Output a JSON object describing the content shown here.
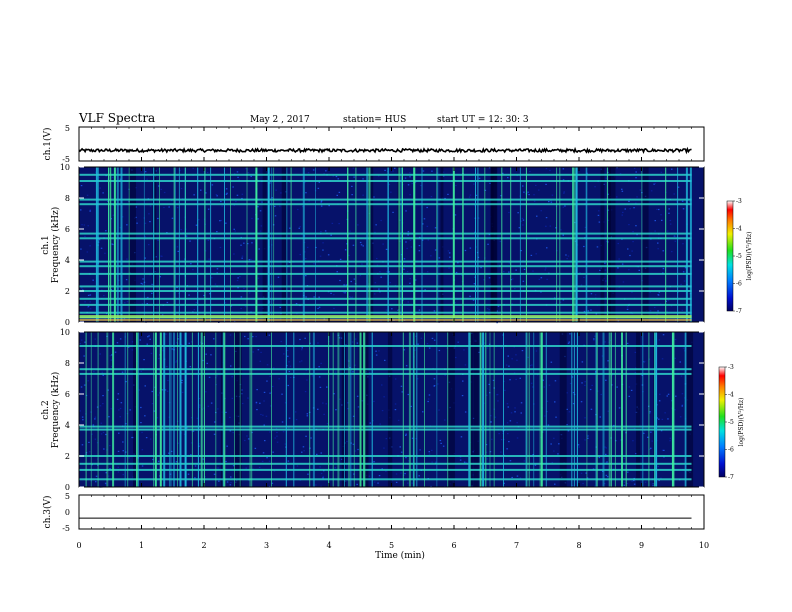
{
  "header": {
    "title": "VLF Spectra",
    "date": "May 2 , 2017",
    "station": "station= HUS",
    "start": "start UT =   12: 30: 3"
  },
  "chart_data": [
    {
      "type": "line",
      "ylabel": "ch.1(V)",
      "ylim": [
        -5,
        5
      ],
      "yticks": [
        "5",
        "-5"
      ],
      "description_of_trace": "noisy waveform near constant level",
      "x": [
        0,
        1,
        2,
        3,
        4,
        5,
        6,
        7,
        8,
        9,
        9.8
      ],
      "y": [
        -1.9,
        -1.9,
        -1.9,
        -1.9,
        -1.9,
        -1.9,
        -1.9,
        -1.9,
        -1.9,
        -1.9,
        -1.9
      ]
    },
    {
      "type": "heatmap",
      "ylabel_line1": "ch.1",
      "ylabel_line2": "Frequency  (kHz)",
      "ylim": [
        0,
        10
      ],
      "yticks": [
        "0",
        "2",
        "4",
        "6",
        "8",
        "10"
      ],
      "colorbar": {
        "label": "log(PSD)(V²/Hz)",
        "ticks": [
          "-3",
          "-4",
          "-5",
          "-6",
          "-7"
        ],
        "range": [
          -7,
          -3
        ]
      },
      "bright_bands_khz": [
        0.3,
        0.6,
        1.1,
        1.5,
        2.0,
        2.3,
        3.1,
        3.6,
        3.9,
        5.4,
        5.7,
        7.6,
        7.9,
        9.1,
        9.5
      ]
    },
    {
      "type": "heatmap",
      "ylabel_line1": "ch.2",
      "ylabel_line2": "Frequency  (kHz)",
      "ylim": [
        0,
        10
      ],
      "yticks": [
        "0",
        "2",
        "4",
        "6",
        "8",
        "10"
      ],
      "colorbar": {
        "label": "log(PSD)(V²/Hz)",
        "ticks": [
          "-3",
          "-4",
          "-5",
          "-6",
          "-7"
        ],
        "range": [
          -7,
          -3
        ]
      },
      "bright_bands_khz": [
        0.5,
        1.1,
        1.5,
        2.0,
        3.7,
        3.9,
        7.3,
        7.6,
        9.1
      ]
    },
    {
      "type": "line",
      "ylabel": "ch.3(V)",
      "ylim": [
        -5,
        5
      ],
      "yticks": [
        "5",
        "0",
        "-5"
      ],
      "x": [
        0,
        9.8
      ],
      "y": [
        -1.8,
        -1.8
      ]
    }
  ],
  "xaxis": {
    "label": "Time  (min)",
    "ticks": [
      "0",
      "1",
      "2",
      "3",
      "4",
      "5",
      "6",
      "7",
      "8",
      "9",
      "10"
    ],
    "xlim": [
      0,
      10
    ]
  },
  "colors": {
    "background": "#000030",
    "spectrogram_base": "#0b2a9e",
    "band_bright": "#2fe0d0",
    "burst": "#40f0a0"
  }
}
